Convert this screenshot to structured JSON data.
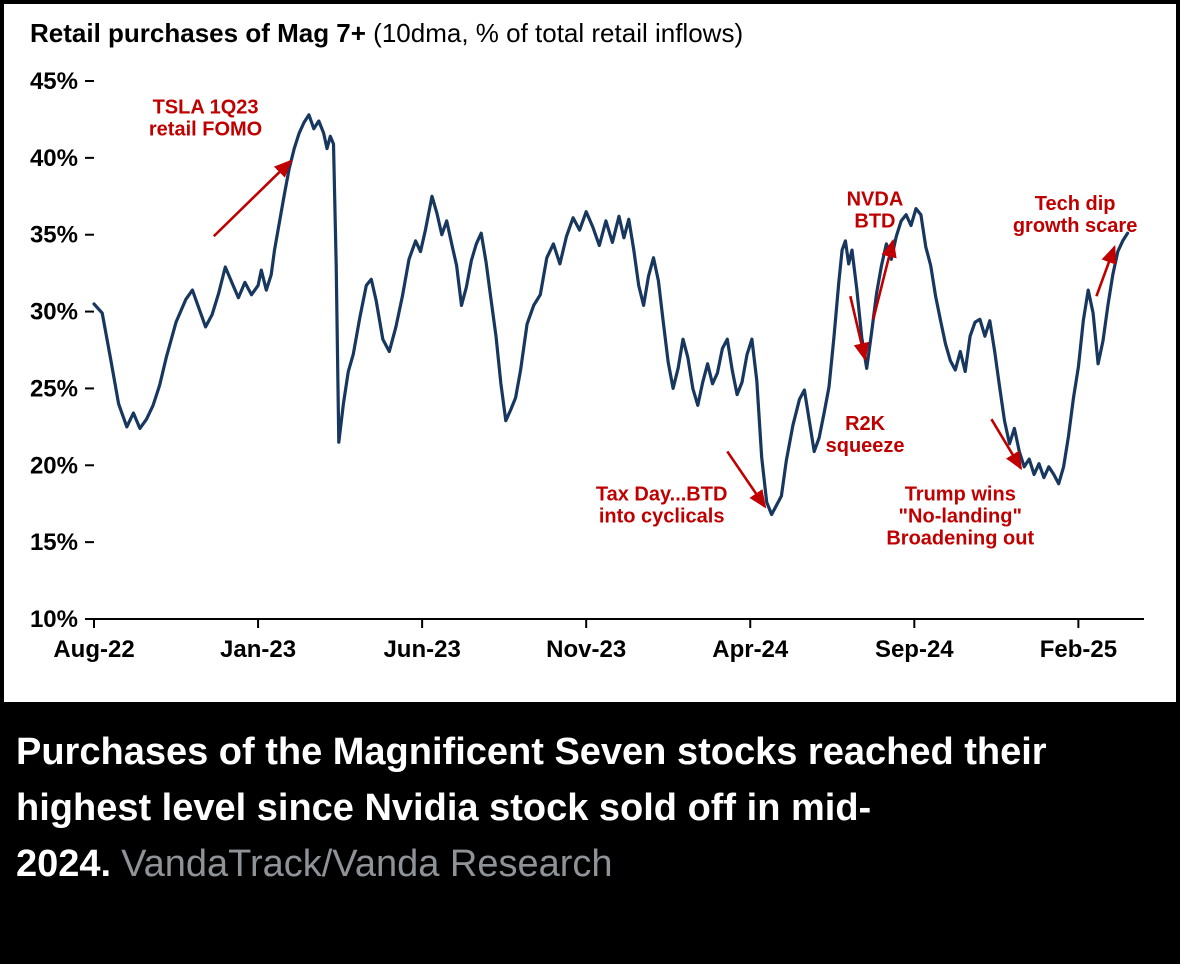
{
  "chart": {
    "title_bold": "Retail purchases of Mag 7+",
    "title_paren": " (10dma, % of total retail inflows)"
  },
  "caption": {
    "text": "Purchases of the Magnificent Seven stocks reached their highest level since Nvidia stock sold off in mid-2024.",
    "source": "VandaTrack/Vanda Research",
    "source_color": "#8f9397"
  },
  "chart_data": {
    "type": "line",
    "title": "Retail purchases of Mag 7+ (10dma, % of total retail inflows)",
    "xlabel": "",
    "ylabel": "",
    "x_unit": "months since Aug-2022",
    "xlim": [
      0,
      32
    ],
    "ylim": [
      10,
      45
    ],
    "y_ticks": [
      10,
      15,
      20,
      25,
      30,
      35,
      40,
      45
    ],
    "y_tick_suffix": "%",
    "x_ticks": [
      {
        "t": 0,
        "label": "Aug-22"
      },
      {
        "t": 5,
        "label": "Jan-23"
      },
      {
        "t": 10,
        "label": "Jun-23"
      },
      {
        "t": 15,
        "label": "Nov-23"
      },
      {
        "t": 20,
        "label": "Apr-24"
      },
      {
        "t": 25,
        "label": "Sep-24"
      },
      {
        "t": 30,
        "label": "Feb-25"
      }
    ],
    "grid": false,
    "legend": "none",
    "line_color": "#17375E",
    "annotation_color": "#C00000",
    "series": [
      {
        "name": "Mag 7+ retail purchases (10dma, % of total retail inflows)",
        "points": [
          [
            0,
            30.5
          ],
          [
            0.25,
            29.9
          ],
          [
            0.5,
            27.0
          ],
          [
            0.75,
            24.0
          ],
          [
            1.0,
            22.5
          ],
          [
            1.2,
            23.4
          ],
          [
            1.4,
            22.4
          ],
          [
            1.6,
            23.0
          ],
          [
            1.8,
            23.9
          ],
          [
            2.0,
            25.2
          ],
          [
            2.2,
            27.0
          ],
          [
            2.5,
            29.3
          ],
          [
            2.8,
            30.8
          ],
          [
            3.0,
            31.4
          ],
          [
            3.2,
            30.2
          ],
          [
            3.4,
            29.0
          ],
          [
            3.6,
            29.8
          ],
          [
            3.8,
            31.2
          ],
          [
            4.0,
            32.9
          ],
          [
            4.2,
            31.9
          ],
          [
            4.4,
            30.9
          ],
          [
            4.6,
            31.9
          ],
          [
            4.8,
            31.1
          ],
          [
            5.0,
            31.7
          ],
          [
            5.1,
            32.7
          ],
          [
            5.25,
            31.4
          ],
          [
            5.4,
            32.4
          ],
          [
            5.5,
            34.0
          ],
          [
            5.65,
            35.8
          ],
          [
            5.8,
            37.6
          ],
          [
            5.95,
            39.3
          ],
          [
            6.1,
            40.6
          ],
          [
            6.25,
            41.6
          ],
          [
            6.4,
            42.3
          ],
          [
            6.55,
            42.8
          ],
          [
            6.7,
            41.9
          ],
          [
            6.85,
            42.4
          ],
          [
            7.0,
            41.6
          ],
          [
            7.1,
            40.6
          ],
          [
            7.2,
            41.4
          ],
          [
            7.3,
            40.9
          ],
          [
            7.38,
            33.0
          ],
          [
            7.46,
            21.5
          ],
          [
            7.6,
            24.0
          ],
          [
            7.75,
            26.1
          ],
          [
            7.9,
            27.2
          ],
          [
            8.1,
            29.6
          ],
          [
            8.3,
            31.7
          ],
          [
            8.45,
            32.1
          ],
          [
            8.6,
            30.7
          ],
          [
            8.8,
            28.2
          ],
          [
            9.0,
            27.4
          ],
          [
            9.2,
            29.0
          ],
          [
            9.4,
            31.0
          ],
          [
            9.6,
            33.4
          ],
          [
            9.8,
            34.6
          ],
          [
            9.95,
            33.9
          ],
          [
            10.1,
            35.3
          ],
          [
            10.3,
            37.5
          ],
          [
            10.45,
            36.4
          ],
          [
            10.6,
            35.0
          ],
          [
            10.75,
            35.9
          ],
          [
            10.9,
            34.4
          ],
          [
            11.05,
            33.0
          ],
          [
            11.2,
            30.4
          ],
          [
            11.35,
            31.6
          ],
          [
            11.5,
            33.3
          ],
          [
            11.65,
            34.4
          ],
          [
            11.8,
            35.1
          ],
          [
            11.95,
            33.2
          ],
          [
            12.1,
            30.8
          ],
          [
            12.25,
            28.4
          ],
          [
            12.4,
            25.3
          ],
          [
            12.55,
            22.9
          ],
          [
            12.7,
            23.6
          ],
          [
            12.85,
            24.4
          ],
          [
            13.0,
            26.2
          ],
          [
            13.2,
            29.2
          ],
          [
            13.4,
            30.4
          ],
          [
            13.6,
            31.1
          ],
          [
            13.8,
            33.5
          ],
          [
            14.0,
            34.4
          ],
          [
            14.2,
            33.1
          ],
          [
            14.4,
            34.9
          ],
          [
            14.6,
            36.1
          ],
          [
            14.8,
            35.3
          ],
          [
            15.0,
            36.5
          ],
          [
            15.2,
            35.5
          ],
          [
            15.4,
            34.3
          ],
          [
            15.6,
            35.9
          ],
          [
            15.8,
            34.5
          ],
          [
            16.0,
            36.2
          ],
          [
            16.15,
            34.8
          ],
          [
            16.3,
            36.0
          ],
          [
            16.45,
            34.0
          ],
          [
            16.6,
            31.7
          ],
          [
            16.75,
            30.4
          ],
          [
            16.9,
            32.3
          ],
          [
            17.05,
            33.5
          ],
          [
            17.2,
            32.0
          ],
          [
            17.35,
            29.3
          ],
          [
            17.5,
            26.7
          ],
          [
            17.65,
            25.0
          ],
          [
            17.8,
            26.3
          ],
          [
            17.95,
            28.2
          ],
          [
            18.1,
            27.0
          ],
          [
            18.25,
            25.0
          ],
          [
            18.4,
            23.9
          ],
          [
            18.55,
            25.4
          ],
          [
            18.7,
            26.6
          ],
          [
            18.85,
            25.3
          ],
          [
            19.0,
            26.0
          ],
          [
            19.15,
            27.6
          ],
          [
            19.3,
            28.2
          ],
          [
            19.45,
            26.2
          ],
          [
            19.6,
            24.6
          ],
          [
            19.75,
            25.4
          ],
          [
            19.9,
            27.2
          ],
          [
            20.05,
            28.2
          ],
          [
            20.2,
            25.5
          ],
          [
            20.35,
            20.5
          ],
          [
            20.5,
            17.6
          ],
          [
            20.65,
            16.8
          ],
          [
            20.8,
            17.4
          ],
          [
            20.95,
            18.0
          ],
          [
            21.1,
            20.3
          ],
          [
            21.3,
            22.6
          ],
          [
            21.5,
            24.3
          ],
          [
            21.65,
            24.9
          ],
          [
            21.8,
            22.9
          ],
          [
            21.95,
            20.9
          ],
          [
            22.1,
            21.8
          ],
          [
            22.25,
            23.4
          ],
          [
            22.4,
            25.1
          ],
          [
            22.55,
            28.3
          ],
          [
            22.7,
            31.9
          ],
          [
            22.8,
            34.0
          ],
          [
            22.9,
            34.6
          ],
          [
            23.0,
            33.1
          ],
          [
            23.1,
            34.0
          ],
          [
            23.25,
            31.4
          ],
          [
            23.4,
            28.3
          ],
          [
            23.55,
            26.3
          ],
          [
            23.7,
            28.7
          ],
          [
            23.85,
            31.2
          ],
          [
            24.0,
            33.0
          ],
          [
            24.15,
            34.4
          ],
          [
            24.3,
            33.4
          ],
          [
            24.45,
            34.9
          ],
          [
            24.6,
            35.9
          ],
          [
            24.75,
            36.3
          ],
          [
            24.9,
            35.6
          ],
          [
            25.05,
            36.7
          ],
          [
            25.2,
            36.3
          ],
          [
            25.35,
            34.2
          ],
          [
            25.5,
            33.0
          ],
          [
            25.65,
            31.0
          ],
          [
            25.8,
            29.4
          ],
          [
            25.95,
            27.9
          ],
          [
            26.1,
            26.8
          ],
          [
            26.25,
            26.2
          ],
          [
            26.4,
            27.4
          ],
          [
            26.55,
            26.1
          ],
          [
            26.7,
            28.4
          ],
          [
            26.85,
            29.3
          ],
          [
            27.0,
            29.5
          ],
          [
            27.15,
            28.4
          ],
          [
            27.3,
            29.4
          ],
          [
            27.45,
            27.4
          ],
          [
            27.6,
            25.1
          ],
          [
            27.75,
            22.9
          ],
          [
            27.9,
            21.4
          ],
          [
            28.05,
            22.4
          ],
          [
            28.2,
            20.9
          ],
          [
            28.35,
            19.9
          ],
          [
            28.5,
            20.4
          ],
          [
            28.65,
            19.4
          ],
          [
            28.8,
            20.1
          ],
          [
            28.95,
            19.2
          ],
          [
            29.1,
            19.9
          ],
          [
            29.25,
            19.4
          ],
          [
            29.4,
            18.8
          ],
          [
            29.55,
            19.9
          ],
          [
            29.7,
            21.9
          ],
          [
            29.85,
            24.4
          ],
          [
            30.0,
            26.4
          ],
          [
            30.15,
            29.4
          ],
          [
            30.3,
            31.4
          ],
          [
            30.45,
            29.9
          ],
          [
            30.6,
            26.6
          ],
          [
            30.75,
            28.1
          ],
          [
            30.9,
            30.4
          ],
          [
            31.05,
            32.4
          ],
          [
            31.2,
            33.9
          ],
          [
            31.35,
            34.6
          ],
          [
            31.5,
            35.1
          ]
        ]
      }
    ],
    "annotations": [
      {
        "id": "tsla-fomo",
        "lines": [
          "TSLA 1Q23",
          "retail FOMO"
        ],
        "text_pos": [
          3.4,
          42.9
        ],
        "arrow_from": [
          3.65,
          34.9
        ],
        "arrow_to": [
          6.0,
          39.8
        ]
      },
      {
        "id": "nvda-btd",
        "lines": [
          "NVDA",
          "BTD"
        ],
        "text_pos": [
          23.8,
          36.9
        ],
        "arrow_from": [
          23.75,
          29.5
        ],
        "arrow_to": [
          24.35,
          34.6
        ]
      },
      {
        "id": "r2k-squeeze",
        "lines": [
          "R2K",
          "squeeze"
        ],
        "text_pos": [
          23.5,
          22.3
        ],
        "arrow_from": [
          23.05,
          31.0
        ],
        "arrow_to": [
          23.5,
          26.9
        ]
      },
      {
        "id": "tax-day-btd",
        "lines": [
          "Tax Day...BTD",
          "into cyclicals"
        ],
        "text_pos": [
          17.3,
          17.7
        ],
        "arrow_from": [
          19.3,
          20.9
        ],
        "arrow_to": [
          20.45,
          17.3
        ]
      },
      {
        "id": "trump-wins",
        "lines": [
          "Trump wins",
          "\"No-landing\"",
          "Broadening out"
        ],
        "text_pos": [
          26.4,
          17.7
        ],
        "arrow_from": [
          27.35,
          23.0
        ],
        "arrow_to": [
          28.25,
          19.8
        ]
      },
      {
        "id": "tech-dip",
        "lines": [
          "Tech dip",
          "growth scare"
        ],
        "text_pos": [
          29.9,
          36.6
        ],
        "arrow_from": [
          30.55,
          31.0
        ],
        "arrow_to": [
          31.1,
          34.2
        ]
      }
    ]
  }
}
